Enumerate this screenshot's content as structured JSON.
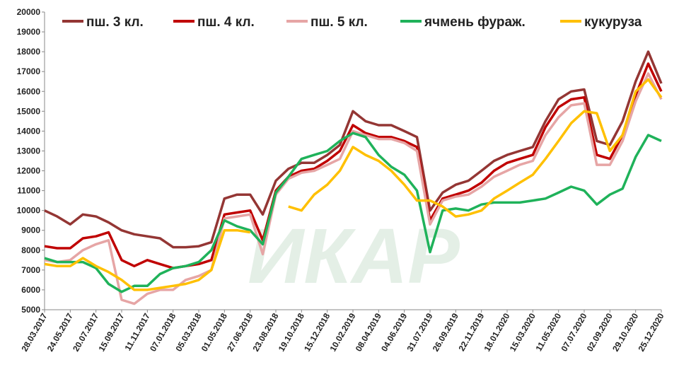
{
  "chart_data": {
    "type": "line",
    "watermark": "ИКАР",
    "x": [
      "28.03.2017",
      "25.04.2017",
      "24.05.2017",
      "21.06.2017",
      "20.07.2017",
      "17.08.2017",
      "15.09.2017",
      "13.10.2017",
      "11.11.2017",
      "09.12.2017",
      "07.01.2018",
      "04.02.2018",
      "05.03.2018",
      "02.04.2018",
      "01.05.2018",
      "29.05.2018",
      "27.06.2018",
      "25.07.2018",
      "23.08.2018",
      "20.09.2018",
      "19.10.2018",
      "16.11.2018",
      "15.12.2018",
      "12.01.2019",
      "10.02.2019",
      "10.03.2019",
      "08.04.2019",
      "06.05.2019",
      "04.06.2019",
      "02.07.2019",
      "31.07.2019",
      "28.08.2019",
      "26.09.2019",
      "24.10.2019",
      "22.11.2019",
      "20.12.2019",
      "18.01.2020",
      "15.02.2020",
      "15.03.2020",
      "12.04.2020",
      "11.05.2020",
      "08.06.2020",
      "07.07.2020",
      "04.08.2020",
      "02.09.2020",
      "30.09.2020",
      "29.10.2020",
      "26.11.2020",
      "25.12.2020"
    ],
    "series": [
      {
        "name": "пш. 3 кл.",
        "color": "#943634",
        "values": [
          10000,
          9700,
          9300,
          9800,
          9700,
          9400,
          9000,
          8800,
          8700,
          8600,
          8150,
          8150,
          8200,
          8400,
          10600,
          10800,
          10800,
          9800,
          11500,
          12100,
          12400,
          12400,
          12800,
          13300,
          15000,
          14500,
          14300,
          14300,
          14000,
          13700,
          10000,
          10900,
          11300,
          11500,
          12000,
          12500,
          12800,
          13000,
          13200,
          14500,
          15600,
          16000,
          16100,
          13500,
          13300,
          14500,
          16500,
          18000,
          16400
        ]
      },
      {
        "name": "пш. 4 кл.",
        "color": "#c00000",
        "values": [
          8200,
          8100,
          8100,
          8600,
          8700,
          8900,
          7500,
          7200,
          7500,
          7300,
          7100,
          7200,
          7300,
          7500,
          9800,
          9900,
          10000,
          8500,
          11000,
          11700,
          12000,
          12100,
          12500,
          13000,
          14300,
          13900,
          13700,
          13700,
          13500,
          13200,
          9500,
          10600,
          10800,
          11000,
          11400,
          12000,
          12400,
          12600,
          12800,
          14200,
          15200,
          15600,
          15700,
          12800,
          12600,
          13800,
          15800,
          17400,
          16000
        ]
      },
      {
        "name": "пш. 5 кл.",
        "color": "#e6a5a5",
        "values": [
          7500,
          7400,
          7500,
          8000,
          8300,
          8500,
          5500,
          5300,
          5800,
          6000,
          6000,
          6500,
          6700,
          7000,
          9600,
          9700,
          9800,
          7800,
          10800,
          11600,
          11900,
          12000,
          12300,
          12600,
          14000,
          13800,
          13600,
          13600,
          13400,
          13000,
          9300,
          10500,
          10700,
          10800,
          11200,
          11700,
          12000,
          12300,
          12500,
          13800,
          14700,
          15300,
          15400,
          12300,
          12300,
          13500,
          15500,
          16900,
          15600
        ]
      },
      {
        "name": "ячмень фураж.",
        "color": "#1fb25a",
        "values": [
          7600,
          7400,
          7400,
          7400,
          7100,
          6300,
          5900,
          6200,
          6200,
          6800,
          7100,
          7200,
          7400,
          8000,
          9500,
          9200,
          9000,
          8300,
          10900,
          11700,
          12600,
          12800,
          13000,
          13500,
          13900,
          13700,
          12800,
          12200,
          11800,
          11000,
          7900,
          10000,
          10100,
          10000,
          10300,
          10400,
          10400,
          10400,
          10500,
          10600,
          10900,
          11200,
          11000,
          10300,
          10800,
          11100,
          12700,
          13800,
          13500
        ]
      },
      {
        "name": "кукуруза",
        "color": "#ffc000",
        "values": [
          7300,
          7200,
          7200,
          7600,
          7200,
          6900,
          6500,
          6000,
          6000,
          6100,
          6200,
          6300,
          6500,
          7000,
          9000,
          9000,
          8900,
          null,
          null,
          10200,
          10000,
          10800,
          11300,
          12000,
          13200,
          12800,
          12500,
          12000,
          11300,
          10500,
          10500,
          10200,
          9700,
          9800,
          10000,
          10600,
          11000,
          11400,
          11800,
          12600,
          13500,
          14400,
          15000,
          14900,
          13000,
          13800,
          16000,
          16600,
          15700
        ]
      }
    ],
    "xlim": [
      "28.03.2017",
      "25.12.2020"
    ],
    "xticks": [
      "28.03.2017",
      "24.05.2017",
      "20.07.2017",
      "15.09.2017",
      "11.11.2017",
      "07.01.2018",
      "05.03.2018",
      "01.05.2018",
      "27.06.2018",
      "23.08.2018",
      "19.10.2018",
      "15.12.2018",
      "10.02.2019",
      "08.04.2019",
      "04.06.2019",
      "31.07.2019",
      "26.09.2019",
      "22.11.2019",
      "18.01.2020",
      "15.03.2020",
      "11.05.2020",
      "07.07.2020",
      "02.09.2020",
      "29.10.2020",
      "25.12.2020"
    ],
    "ylim": [
      5000,
      20000
    ],
    "yticks": [
      5000,
      6000,
      7000,
      8000,
      9000,
      10000,
      11000,
      12000,
      13000,
      14000,
      15000,
      16000,
      17000,
      18000,
      19000,
      20000
    ],
    "grid": false
  }
}
